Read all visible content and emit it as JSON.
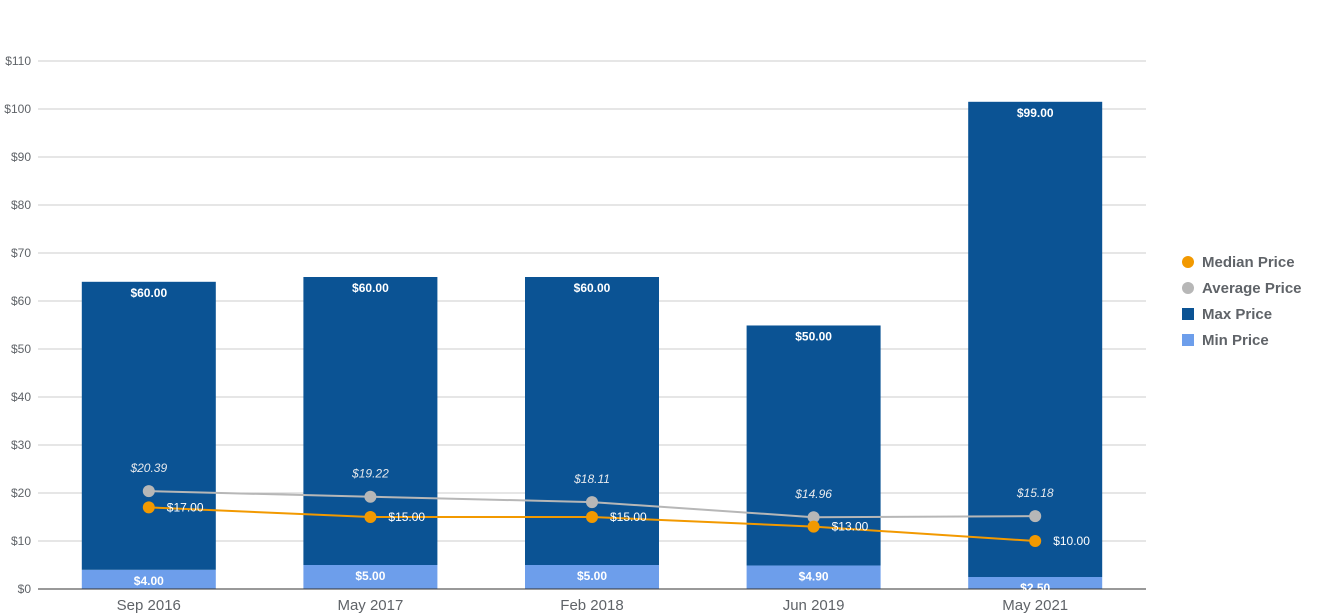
{
  "chart_data": {
    "type": "bar",
    "stacked": true,
    "categories": [
      "Sep 2016",
      "May 2017",
      "Feb 2018",
      "Jun 2019",
      "May 2021"
    ],
    "series": [
      {
        "name": "Min Price",
        "kind": "bar",
        "color": "#6d9eeb",
        "values": [
          4.0,
          5.0,
          5.0,
          4.9,
          2.5
        ],
        "labels": [
          "$4.00",
          "$5.00",
          "$5.00",
          "$4.90",
          "$2.50"
        ]
      },
      {
        "name": "Max Price",
        "kind": "bar",
        "color": "#0b5394",
        "values": [
          60.0,
          60.0,
          60.0,
          50.0,
          99.0
        ],
        "labels": [
          "$60.00",
          "$60.00",
          "$60.00",
          "$50.00",
          "$99.00"
        ]
      },
      {
        "name": "Average Price",
        "kind": "line",
        "color": "#b7b7b7",
        "values": [
          20.39,
          19.22,
          18.11,
          14.96,
          15.18
        ],
        "labels": [
          "$20.39",
          "$19.22",
          "$18.11",
          "$14.96",
          "$15.18"
        ]
      },
      {
        "name": "Median Price",
        "kind": "line",
        "color": "#f29900",
        "values": [
          17.0,
          15.0,
          15.0,
          13.0,
          10.0
        ],
        "labels": [
          "$17.00",
          "$15.00",
          "$15.00",
          "$13.00",
          "$10.00"
        ]
      }
    ],
    "y_ticks": [
      "$0",
      "$10",
      "$20",
      "$30",
      "$40",
      "$50",
      "$60",
      "$70",
      "$80",
      "$90",
      "$100",
      "$110"
    ],
    "ylim": [
      0,
      110
    ],
    "title": "",
    "xlabel": "",
    "ylabel": "",
    "grid": true,
    "legend": {
      "position": "right",
      "items": [
        {
          "name": "Median Price",
          "shape": "circle",
          "color": "#f29900"
        },
        {
          "name": "Average Price",
          "shape": "circle",
          "color": "#b7b7b7"
        },
        {
          "name": "Max Price",
          "shape": "square",
          "color": "#0b5394"
        },
        {
          "name": "Min Price",
          "shape": "square",
          "color": "#6d9eeb"
        }
      ]
    }
  }
}
